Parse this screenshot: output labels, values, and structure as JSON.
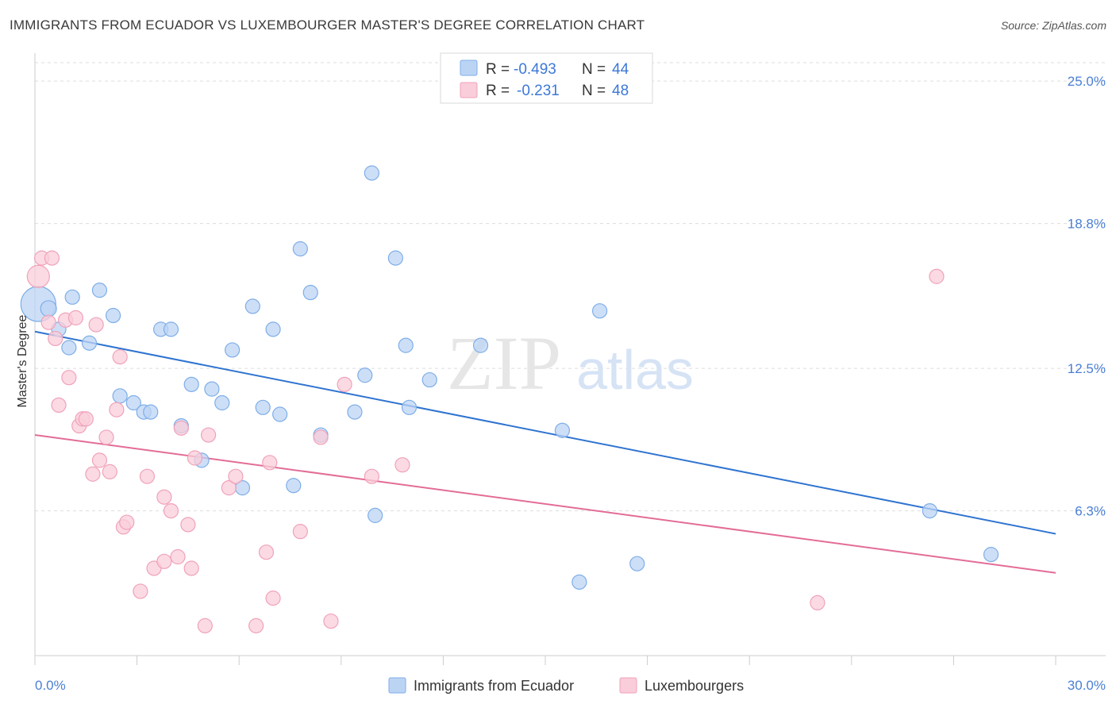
{
  "title": "IMMIGRANTS FROM ECUADOR VS LUXEMBOURGER MASTER'S DEGREE CORRELATION CHART",
  "source": "Source: ZipAtlas.com",
  "watermark": {
    "zip": "ZIP",
    "atlas": "atlas"
  },
  "legend": {
    "r_label": "R =",
    "n_label": "N =",
    "rows": [
      {
        "r": "-0.493",
        "n": "44",
        "color": "#7eaee8",
        "fill": "#bcd4f4"
      },
      {
        "r": "-0.231",
        "n": "48",
        "color": "#f0a2ba",
        "fill": "#f9cdd9"
      }
    ]
  },
  "chart_data": {
    "type": "scatter",
    "title": "IMMIGRANTS FROM ECUADOR VS LUXEMBOURGER MASTER'S DEGREE CORRELATION CHART",
    "xlabel": "",
    "ylabel": "Master's Degree",
    "xlim": [
      0,
      30
    ],
    "ylim": [
      0,
      25.8
    ],
    "x_tick_labels": [
      "0.0%",
      "30.0%"
    ],
    "y_ticks": [
      6.3,
      12.5,
      18.8,
      25.0
    ],
    "y_tick_labels": [
      "6.3%",
      "12.5%",
      "18.8%",
      "25.0%"
    ],
    "grid": true,
    "legend_position": "top-center",
    "series": [
      {
        "name": "Immigrants from Ecuador",
        "color": "#7eaee8",
        "fill": "#bcd4f4",
        "line_color": "#2f74d0",
        "trend": {
          "x0": 0,
          "y0": 14.1,
          "x1": 30,
          "y1": 5.3
        },
        "points": [
          [
            0.1,
            15.3,
            22
          ],
          [
            0.4,
            15.1,
            10
          ],
          [
            0.7,
            14.2,
            9
          ],
          [
            1.1,
            15.6,
            9
          ],
          [
            1.9,
            15.9,
            9
          ],
          [
            2.3,
            14.8,
            9
          ],
          [
            1.0,
            13.4,
            9
          ],
          [
            1.6,
            13.6,
            9
          ],
          [
            2.5,
            11.3,
            9
          ],
          [
            2.9,
            11.0,
            9
          ],
          [
            3.2,
            10.6,
            9
          ],
          [
            3.4,
            10.6,
            9
          ],
          [
            3.7,
            14.2,
            9
          ],
          [
            4.0,
            14.2,
            9
          ],
          [
            4.3,
            10.0,
            9
          ],
          [
            4.6,
            11.8,
            9
          ],
          [
            4.9,
            8.5,
            9
          ],
          [
            5.2,
            11.6,
            9
          ],
          [
            5.5,
            11.0,
            9
          ],
          [
            5.8,
            13.3,
            9
          ],
          [
            6.1,
            7.3,
            9
          ],
          [
            6.4,
            15.2,
            9
          ],
          [
            6.7,
            10.8,
            9
          ],
          [
            7.0,
            14.2,
            9
          ],
          [
            7.2,
            10.5,
            9
          ],
          [
            7.6,
            7.4,
            9
          ],
          [
            7.8,
            17.7,
            9
          ],
          [
            8.1,
            15.8,
            9
          ],
          [
            8.4,
            9.6,
            9
          ],
          [
            9.4,
            10.6,
            9
          ],
          [
            9.7,
            12.2,
            9
          ],
          [
            9.9,
            21.0,
            9
          ],
          [
            10.0,
            6.1,
            9
          ],
          [
            10.6,
            17.3,
            9
          ],
          [
            10.9,
            13.5,
            9
          ],
          [
            11.0,
            10.8,
            9
          ],
          [
            11.6,
            12.0,
            9
          ],
          [
            13.1,
            13.5,
            9
          ],
          [
            15.5,
            9.8,
            9
          ],
          [
            16.0,
            3.2,
            9
          ],
          [
            16.6,
            15.0,
            9
          ],
          [
            17.7,
            4.0,
            9
          ],
          [
            26.3,
            6.3,
            9
          ],
          [
            28.1,
            4.4,
            9
          ]
        ]
      },
      {
        "name": "Luxembourgers",
        "color": "#f0a2ba",
        "fill": "#f9cdd9",
        "line_color": "#e36c97",
        "trend": {
          "x0": 0,
          "y0": 9.6,
          "x1": 30,
          "y1": 3.6
        },
        "points": [
          [
            0.1,
            16.5,
            14
          ],
          [
            0.2,
            17.3,
            9
          ],
          [
            0.5,
            17.3,
            9
          ],
          [
            0.4,
            14.5,
            9
          ],
          [
            0.6,
            13.8,
            9
          ],
          [
            0.7,
            10.9,
            9
          ],
          [
            0.9,
            14.6,
            9
          ],
          [
            1.0,
            12.1,
            9
          ],
          [
            1.2,
            14.7,
            9
          ],
          [
            1.3,
            10.0,
            9
          ],
          [
            1.4,
            10.3,
            9
          ],
          [
            1.5,
            10.3,
            9
          ],
          [
            1.7,
            7.9,
            9
          ],
          [
            1.8,
            14.4,
            9
          ],
          [
            1.9,
            8.5,
            9
          ],
          [
            2.1,
            9.5,
            9
          ],
          [
            2.2,
            8.0,
            9
          ],
          [
            2.4,
            10.7,
            9
          ],
          [
            2.5,
            13.0,
            9
          ],
          [
            2.6,
            5.6,
            9
          ],
          [
            2.7,
            5.8,
            9
          ],
          [
            3.1,
            2.8,
            9
          ],
          [
            3.3,
            7.8,
            9
          ],
          [
            3.5,
            3.8,
            9
          ],
          [
            3.8,
            6.9,
            9
          ],
          [
            3.8,
            4.1,
            9
          ],
          [
            4.0,
            6.3,
            9
          ],
          [
            4.2,
            4.3,
            9
          ],
          [
            4.3,
            9.9,
            9
          ],
          [
            4.5,
            5.7,
            9
          ],
          [
            4.6,
            3.8,
            9
          ],
          [
            4.7,
            8.6,
            9
          ],
          [
            5.0,
            1.3,
            9
          ],
          [
            5.1,
            9.6,
            9
          ],
          [
            5.7,
            7.3,
            9
          ],
          [
            5.9,
            7.8,
            9
          ],
          [
            6.5,
            1.3,
            9
          ],
          [
            6.8,
            4.5,
            9
          ],
          [
            6.9,
            8.4,
            9
          ],
          [
            7.0,
            2.5,
            9
          ],
          [
            7.8,
            5.4,
            9
          ],
          [
            8.4,
            9.5,
            9
          ],
          [
            8.7,
            1.5,
            9
          ],
          [
            9.1,
            11.8,
            9
          ],
          [
            9.9,
            7.8,
            9
          ],
          [
            10.8,
            8.3,
            9
          ],
          [
            23.0,
            2.3,
            9
          ],
          [
            26.5,
            16.5,
            9
          ]
        ]
      }
    ]
  }
}
